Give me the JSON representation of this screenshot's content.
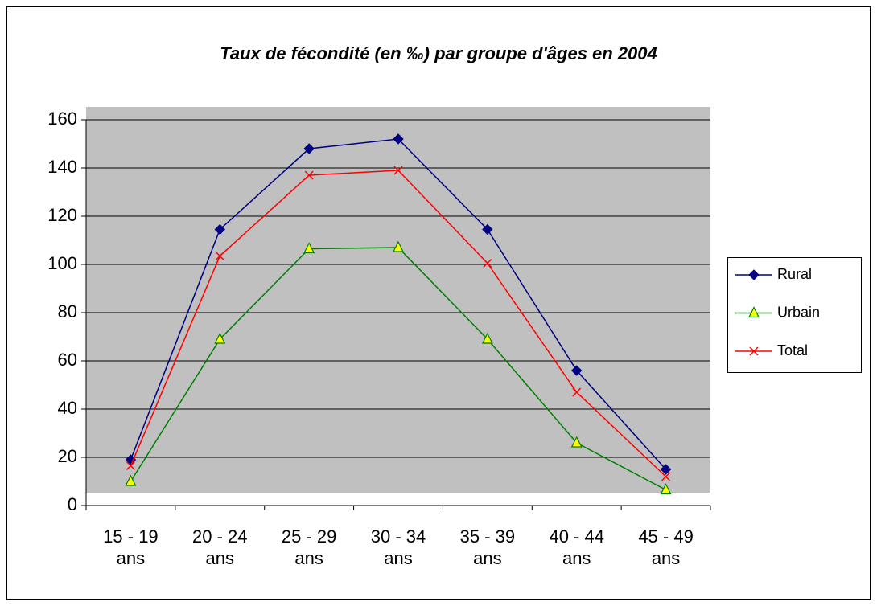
{
  "chart_data": {
    "type": "line",
    "title": "Taux de fécondité (en ‰) par groupe d'âges en 2004",
    "categories": [
      "15 - 19 ans",
      "20 - 24 ans",
      "25 - 29 ans",
      "30 - 34 ans",
      "35 - 39 ans",
      "40 - 44 ans",
      "45 - 49 ans"
    ],
    "series": [
      {
        "name": "Rural",
        "color": "#000080",
        "marker": "diamond",
        "values": [
          19,
          114.5,
          148,
          152,
          114.5,
          56,
          15
        ]
      },
      {
        "name": "Urbain",
        "color": "#008000",
        "marker": "triangle",
        "values": [
          10,
          69,
          106.5,
          107,
          69,
          26,
          6.5
        ]
      },
      {
        "name": "Total",
        "color": "#ff0000",
        "marker": "x",
        "values": [
          16.5,
          103.5,
          137,
          139,
          100.5,
          47,
          12
        ]
      }
    ],
    "ylim": [
      0,
      160
    ],
    "yticks": [
      0,
      20,
      40,
      60,
      80,
      100,
      120,
      140,
      160
    ],
    "grid": true,
    "legend": "right"
  }
}
